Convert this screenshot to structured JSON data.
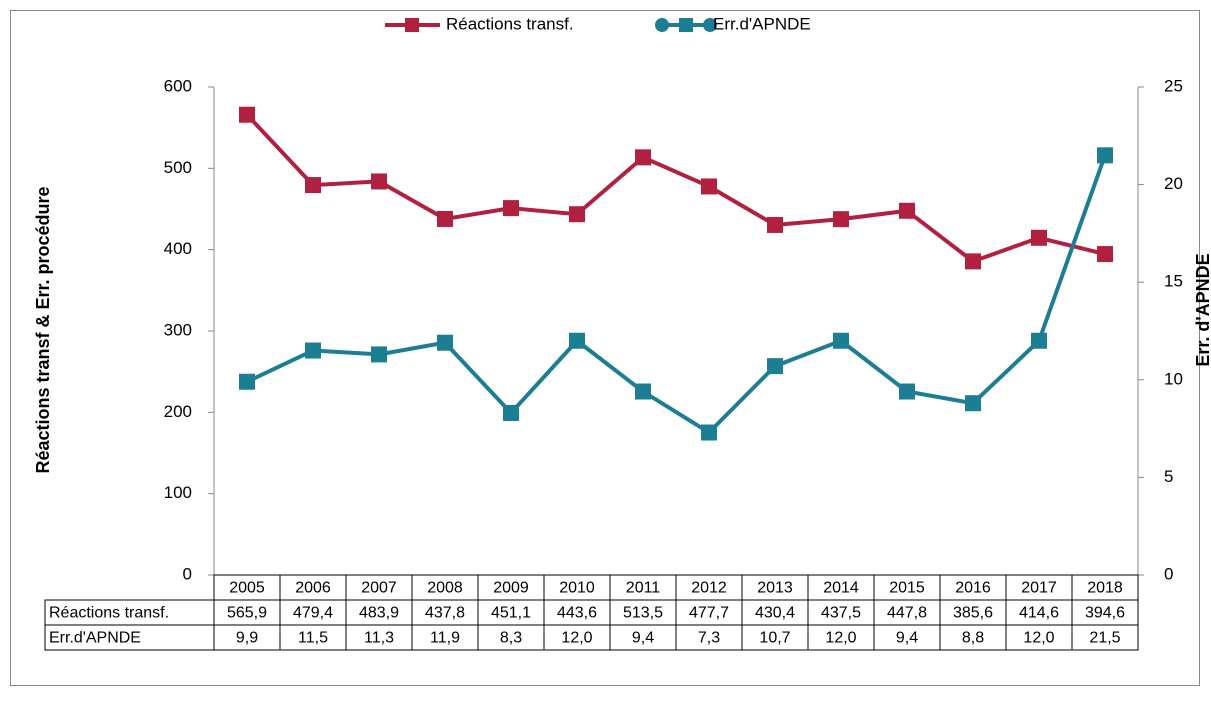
{
  "chart_data": {
    "type": "line",
    "y_label": "Réactions transf & Err. procédure",
    "y2_label": "Err. d'APNDE",
    "categories": [
      "2005",
      "2006",
      "2007",
      "2008",
      "2009",
      "2010",
      "2011",
      "2012",
      "2013",
      "2014",
      "2015",
      "2016",
      "2017",
      "2018"
    ],
    "series": [
      {
        "name": "Réactions transf.",
        "color": "#b2203f",
        "axis": "y",
        "values": [
          565.9,
          479.4,
          483.9,
          437.8,
          451.1,
          443.6,
          513.5,
          477.7,
          430.4,
          437.5,
          447.8,
          385.6,
          414.6,
          394.6
        ],
        "value_labels": [
          "565,9",
          "479,4",
          "483,9",
          "437,8",
          "451,1",
          "443,6",
          "513,5",
          "477,7",
          "430,4",
          "437,5",
          "447,8",
          "385,6",
          "414,6",
          "394,6"
        ]
      },
      {
        "name": "Err.d'APNDE",
        "color": "#1b7e93",
        "axis": "y2",
        "values": [
          9.9,
          11.5,
          11.3,
          11.9,
          8.3,
          12.0,
          9.4,
          7.3,
          10.7,
          12.0,
          9.4,
          8.8,
          12.0,
          21.5
        ],
        "value_labels": [
          "9,9",
          "11,5",
          "11,3",
          "11,9",
          "8,3",
          "12,0",
          "9,4",
          "7,3",
          "10,7",
          "12,0",
          "9,4",
          "8,8",
          "12,0",
          "21,5"
        ]
      }
    ],
    "ylim": [
      0,
      600
    ],
    "yticks": [
      0,
      100,
      200,
      300,
      400,
      500,
      600
    ],
    "y2lim": [
      0,
      25
    ],
    "y2ticks": [
      0,
      5,
      10,
      15,
      20,
      25
    ],
    "legend": "top"
  }
}
